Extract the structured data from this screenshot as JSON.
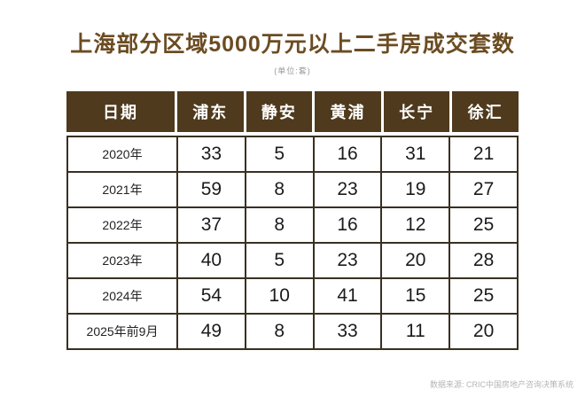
{
  "title": "上海部分区域5000万元以上二手房成交套数",
  "subtitle": "(单位:套)",
  "source_note": "数据来源: CRIC中国房地产咨询决策系统",
  "colors": {
    "header_bg": "#4f3a1d",
    "title_text": "#6b4c22",
    "body_border": "#393022",
    "source_text": "#b5b5b5"
  },
  "chart_data": {
    "type": "table",
    "title": "上海部分区域5000万元以上二手房成交套数",
    "unit": "套",
    "columns": [
      "日期",
      "浦东",
      "静安",
      "黄浦",
      "长宁",
      "徐汇"
    ],
    "rows": [
      [
        "2020年",
        33,
        5,
        16,
        31,
        21
      ],
      [
        "2021年",
        59,
        8,
        23,
        19,
        27
      ],
      [
        "2022年",
        37,
        8,
        16,
        12,
        25
      ],
      [
        "2023年",
        40,
        5,
        23,
        20,
        28
      ],
      [
        "2024年",
        54,
        10,
        41,
        15,
        25
      ],
      [
        "2025年前9月",
        49,
        8,
        33,
        11,
        20
      ]
    ],
    "source": "数据来源: CRIC中国房地产咨询决策系统"
  }
}
